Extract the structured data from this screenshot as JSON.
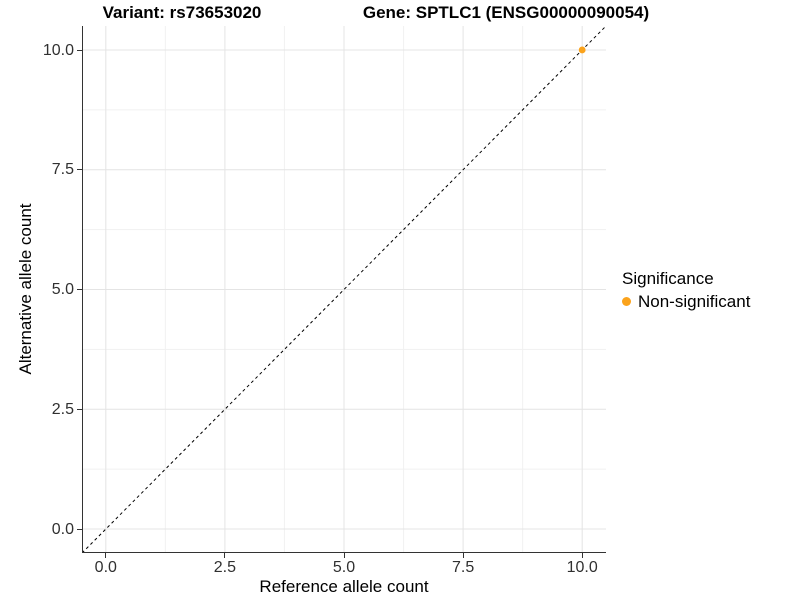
{
  "header": {
    "variant_title": "Variant: rs73653020",
    "gene_title": "Gene: SPTLC1 (ENSG00000090054)"
  },
  "legend": {
    "title": "Significance",
    "items": [
      {
        "label": "Non-significant",
        "color": "#FBA31C"
      }
    ]
  },
  "chart_data": {
    "type": "scatter",
    "title": "Variant: rs73653020   Gene: SPTLC1 (ENSG00000090054)",
    "xlabel": "Reference allele count",
    "ylabel": "Alternative allele count",
    "xlim": [
      -0.5,
      10.5
    ],
    "ylim": [
      -0.5,
      10.5
    ],
    "x_ticks": [
      0,
      2.5,
      5,
      7.5,
      10
    ],
    "x_tick_labels": [
      "0.0",
      "2.5",
      "5.0",
      "7.5",
      "10.0"
    ],
    "y_ticks": [
      0,
      2.5,
      5,
      7.5,
      10
    ],
    "y_tick_labels": [
      "0.0",
      "2.5",
      "5.0",
      "7.5",
      "10.0"
    ],
    "minor_ticks": [
      1.25,
      3.75,
      6.25,
      8.75
    ],
    "grid": true,
    "legend_position": "right",
    "series": [
      {
        "name": "Non-significant",
        "color": "#FBA31C",
        "points": [
          {
            "x": 10,
            "y": 10
          }
        ]
      }
    ],
    "reference_line": {
      "type": "identity",
      "style": "dashed",
      "color": "#000000",
      "from": [
        -0.5,
        -0.5
      ],
      "to": [
        10.5,
        10.5
      ]
    }
  },
  "colors": {
    "grid_major": "#e4e4e4",
    "grid_minor": "#f1f1f1",
    "axis_line": "#333333",
    "tick_text": "#303030"
  }
}
